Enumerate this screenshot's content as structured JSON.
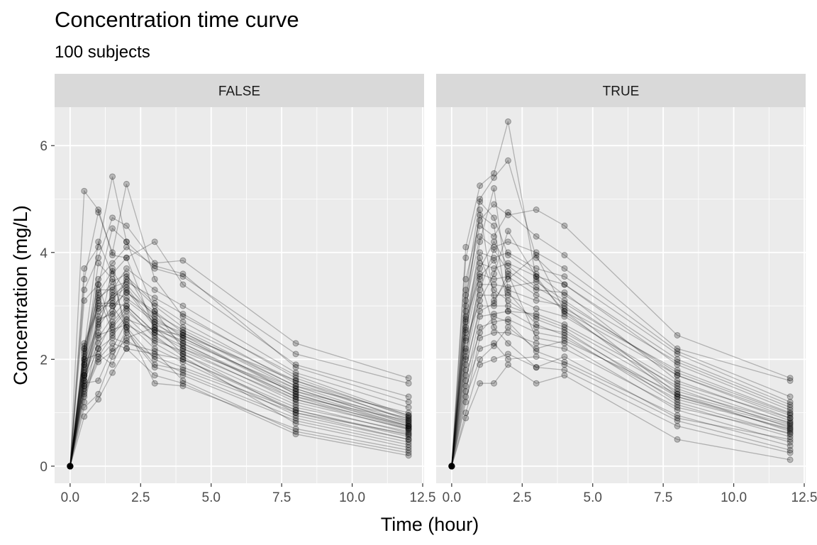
{
  "chart_data": {
    "type": "line",
    "title": "Concentration time curve",
    "subtitle": "100 subjects",
    "xlabel": "Time (hour)",
    "ylabel": "Concentration (mg/L)",
    "xlim": [
      -0.55,
      12.55
    ],
    "ylim": [
      -0.32,
      6.72
    ],
    "x_ticks": [
      0.0,
      2.5,
      5.0,
      7.5,
      10.0,
      12.5
    ],
    "x_tick_labels": [
      "0.0",
      "2.5",
      "5.0",
      "7.5",
      "10.0",
      "12.5"
    ],
    "y_ticks": [
      0,
      2,
      4,
      6
    ],
    "y_tick_labels": [
      "0",
      "2",
      "4",
      "6"
    ],
    "grid": true,
    "times": [
      0,
      0.5,
      1,
      1.5,
      2,
      3,
      4,
      8,
      12
    ],
    "colors": {
      "panel_bg": "#ebebeb",
      "strip_bg": "#d9d9d9",
      "grid_major": "#ffffff",
      "line": "#000000",
      "point": "#000000",
      "tick_text": "#4d4d4d"
    },
    "facets": [
      {
        "label": "FALSE",
        "series": [
          [
            0,
            5.15,
            4.8,
            3.95,
            3.9,
            2.55,
            2.45,
            1.6,
            0.85
          ],
          [
            0,
            3.7,
            4.1,
            5.42,
            4.2,
            2.9,
            2.2,
            1.4,
            0.75
          ],
          [
            0,
            3.5,
            4.75,
            4.0,
            5.28,
            3.5,
            2.8,
            1.7,
            0.95
          ],
          [
            0,
            3.3,
            3.9,
            4.65,
            4.5,
            3.8,
            3.85,
            2.3,
            1.65
          ],
          [
            0,
            3.1,
            3.4,
            4.45,
            4.2,
            3.7,
            3.55,
            2.1,
            1.55
          ],
          [
            0,
            2.2,
            4.2,
            3.6,
            3.9,
            4.2,
            3.4,
            1.9,
            1.3
          ],
          [
            0,
            2.0,
            3.5,
            3.8,
            4.1,
            3.75,
            3.6,
            1.85,
            1.2
          ],
          [
            0,
            1.9,
            3.3,
            3.3,
            3.7,
            3.3,
            3.0,
            1.75,
            1.1
          ],
          [
            0,
            1.7,
            3.1,
            3.45,
            3.6,
            2.7,
            2.5,
            1.5,
            1.0
          ],
          [
            0,
            1.6,
            2.9,
            3.1,
            3.5,
            3.0,
            2.6,
            1.6,
            0.95
          ],
          [
            0,
            1.5,
            2.8,
            3.2,
            3.4,
            2.8,
            2.4,
            1.4,
            0.9
          ],
          [
            0,
            1.5,
            2.7,
            2.9,
            3.3,
            2.6,
            2.3,
            1.3,
            0.85
          ],
          [
            0,
            1.8,
            2.6,
            3.0,
            3.25,
            2.9,
            2.5,
            1.45,
            0.8
          ],
          [
            0,
            1.2,
            2.2,
            2.7,
            3.0,
            2.5,
            2.2,
            1.2,
            0.7
          ],
          [
            0,
            1.3,
            2.4,
            2.8,
            3.1,
            2.7,
            2.3,
            1.25,
            0.75
          ],
          [
            0,
            0.93,
            1.25,
            1.75,
            2.2,
            2.1,
            2.0,
            1.1,
            0.65
          ],
          [
            0,
            1.1,
            1.35,
            2.05,
            2.55,
            1.9,
            1.8,
            1.0,
            0.6
          ],
          [
            0,
            1.7,
            2.3,
            2.65,
            2.95,
            2.4,
            2.1,
            1.15,
            0.62
          ],
          [
            0,
            2.1,
            3.2,
            2.5,
            2.8,
            2.3,
            2.0,
            1.05,
            0.55
          ],
          [
            0,
            2.3,
            3.0,
            3.0,
            2.6,
            1.55,
            1.5,
            0.7,
            0.3
          ],
          [
            0,
            2.0,
            2.1,
            1.9,
            2.5,
            1.85,
            1.7,
            0.85,
            0.4
          ],
          [
            0,
            1.55,
            1.6,
            2.2,
            2.7,
            2.2,
            1.95,
            0.95,
            0.5
          ],
          [
            0,
            1.9,
            3.8,
            3.5,
            2.6,
            2.0,
            1.75,
            0.9,
            0.45
          ],
          [
            0,
            2.2,
            3.4,
            2.6,
            2.9,
            2.45,
            2.05,
            0.8,
            0.35
          ],
          [
            0,
            1.7,
            2.5,
            3.7,
            2.4,
            2.6,
            2.1,
            1.0,
            0.5
          ],
          [
            0,
            1.6,
            2.2,
            2.4,
            2.3,
            2.15,
            1.6,
            0.65,
            0.25
          ],
          [
            0,
            1.4,
            2.0,
            2.3,
            2.2,
            1.7,
            1.55,
            0.6,
            0.2
          ],
          [
            0,
            2.05,
            3.05,
            3.05,
            3.0,
            2.5,
            2.25,
            1.3,
            0.7
          ],
          [
            0,
            1.95,
            2.65,
            3.25,
            3.15,
            2.75,
            2.45,
            1.35,
            0.75
          ],
          [
            0,
            1.75,
            2.75,
            2.85,
            3.55,
            3.05,
            2.7,
            1.55,
            0.88
          ],
          [
            0,
            1.85,
            3.15,
            3.35,
            3.45,
            3.15,
            2.85,
            1.65,
            0.92
          ],
          [
            0,
            1.65,
            2.45,
            2.55,
            2.65,
            2.35,
            2.15,
            1.25,
            0.68
          ],
          [
            0,
            1.45,
            2.05,
            2.45,
            2.75,
            2.55,
            2.35,
            1.45,
            0.78
          ],
          [
            0,
            2.15,
            3.25,
            3.65,
            3.25,
            2.85,
            2.55,
            1.5,
            0.82
          ],
          [
            0,
            1.35,
            1.95,
            2.15,
            2.35,
            2.05,
            1.85,
            1.05,
            0.58
          ],
          [
            0,
            2.25,
            2.95,
            3.15,
            3.35,
            2.65,
            2.4,
            1.35,
            0.72
          ]
        ]
      },
      {
        "label": "TRUE",
        "series": [
          [
            0,
            4.1,
            5.25,
            5.48,
            6.45,
            3.5,
            2.9,
            1.7,
            0.9
          ],
          [
            0,
            3.9,
            5.0,
            5.4,
            5.72,
            3.9,
            3.4,
            1.9,
            1.05
          ],
          [
            0,
            3.5,
            4.6,
            4.9,
            4.7,
            4.8,
            4.5,
            2.45,
            1.65
          ],
          [
            0,
            3.2,
            4.5,
            4.3,
            4.75,
            4.3,
            3.95,
            2.2,
            1.6
          ],
          [
            0,
            3.0,
            4.3,
            4.1,
            4.2,
            4.0,
            3.7,
            2.15,
            1.3
          ],
          [
            0,
            2.8,
            4.0,
            3.9,
            4.0,
            3.7,
            3.55,
            2.1,
            1.2
          ],
          [
            0,
            2.6,
            3.8,
            3.7,
            3.8,
            3.55,
            3.4,
            2.0,
            1.15
          ],
          [
            0,
            2.4,
            3.6,
            3.5,
            3.55,
            3.2,
            2.95,
            1.8,
            1.0
          ],
          [
            0,
            2.2,
            3.4,
            3.4,
            3.35,
            3.45,
            3.1,
            1.7,
            0.95
          ],
          [
            0,
            2.0,
            3.2,
            3.2,
            3.2,
            2.95,
            2.8,
            1.55,
            0.9
          ],
          [
            0,
            1.8,
            3.0,
            3.0,
            3.0,
            2.8,
            2.6,
            1.4,
            0.82
          ],
          [
            0,
            1.6,
            2.8,
            2.85,
            2.9,
            2.6,
            2.5,
            1.3,
            0.75
          ],
          [
            0,
            1.4,
            2.6,
            2.7,
            2.75,
            2.5,
            2.4,
            1.25,
            0.7
          ],
          [
            0,
            1.2,
            2.4,
            2.5,
            2.5,
            2.3,
            2.2,
            1.1,
            0.62
          ],
          [
            0,
            0.9,
            1.55,
            1.55,
            1.9,
            1.55,
            1.7,
            0.5,
            0.12
          ],
          [
            0,
            1.0,
            1.9,
            2.0,
            2.1,
            1.85,
            1.8,
            0.75,
            0.25
          ],
          [
            0,
            1.5,
            2.2,
            2.3,
            2.0,
            2.05,
            1.9,
            0.85,
            0.3
          ],
          [
            0,
            2.9,
            4.8,
            3.1,
            3.5,
            3.95,
            2.9,
            1.3,
            0.68
          ],
          [
            0,
            2.5,
            4.2,
            5.2,
            3.3,
            3.1,
            3.0,
            1.35,
            0.65
          ],
          [
            0,
            2.7,
            3.9,
            3.3,
            3.1,
            2.75,
            2.55,
            1.2,
            0.6
          ],
          [
            0,
            2.35,
            3.1,
            3.6,
            4.4,
            3.55,
            2.85,
            1.45,
            0.72
          ],
          [
            0,
            2.15,
            3.3,
            4.05,
            3.65,
            3.3,
            3.25,
            1.6,
            0.85
          ],
          [
            0,
            1.9,
            2.9,
            3.05,
            3.6,
            2.4,
            2.3,
            1.05,
            0.45
          ],
          [
            0,
            1.7,
            2.5,
            2.8,
            2.7,
            2.15,
            1.95,
            0.95,
            0.38
          ],
          [
            0,
            3.1,
            4.7,
            4.5,
            2.9,
            2.85,
            2.65,
            1.5,
            0.8
          ],
          [
            0,
            2.55,
            3.7,
            4.2,
            3.75,
            3.35,
            3.05,
            1.75,
            0.98
          ],
          [
            0,
            2.05,
            3.5,
            2.6,
            2.3,
            1.85,
            2.05,
            0.9,
            0.5
          ],
          [
            0,
            3.3,
            4.95,
            4.65,
            3.95,
            3.6,
            3.2,
            1.95,
            1.1
          ],
          [
            0,
            2.75,
            3.55,
            3.85,
            3.25,
            2.65,
            2.45,
            1.15,
            0.55
          ],
          [
            0,
            1.3,
            2.0,
            2.25,
            2.6,
            2.2,
            2.35,
            1.35,
            0.78
          ]
        ]
      }
    ]
  }
}
